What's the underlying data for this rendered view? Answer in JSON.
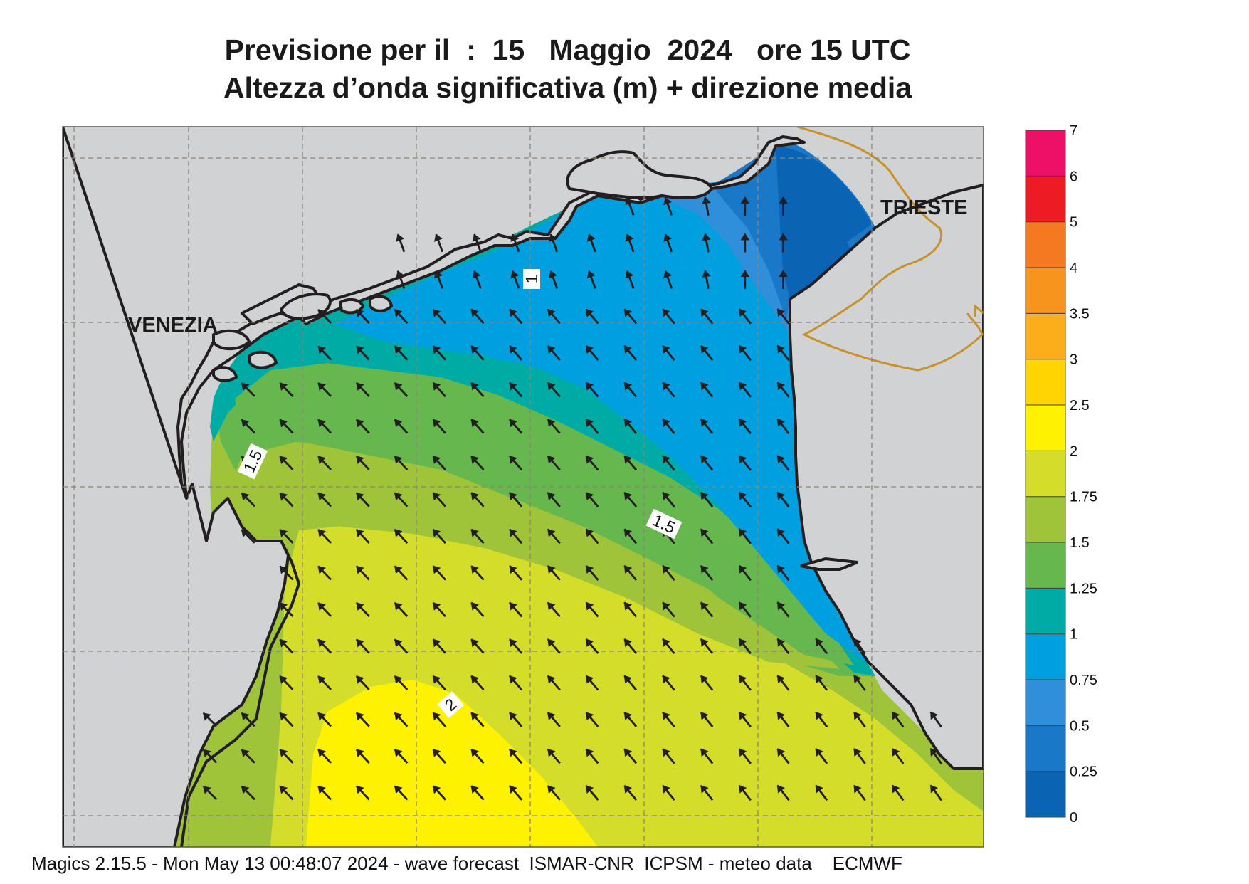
{
  "title_line1": "Previsione per il  :  15   Maggio  2024   ore 15 UTC",
  "title_line2": "Altezza d’onda significativa (m) + direzione media",
  "cities": [
    {
      "name": "VENEZIA"
    },
    {
      "name": "TRIESTE"
    }
  ],
  "contour_labels": [
    "1",
    "1.5",
    "1.5",
    "2"
  ],
  "colorbar": {
    "ticks": [
      "0",
      "0.25",
      "0.5",
      "0.75",
      "1",
      "1.25",
      "1.5",
      "1.75",
      "2",
      "2.5",
      "3",
      "3.5",
      "4",
      "5",
      "6",
      "7"
    ],
    "colors": [
      "#0b63b4",
      "#1a78c8",
      "#2f8fda",
      "#00a0e0",
      "#00aaa5",
      "#66b74e",
      "#9fc43a",
      "#d4dd2a",
      "#fff200",
      "#ffd400",
      "#fbae1a",
      "#f7941d",
      "#f47920",
      "#ed1c24",
      "#ee1066"
    ]
  },
  "colors": {
    "land": "#d1d2d4",
    "coast": "#231f20",
    "border": "#c8912a",
    "grid": "#8c8478",
    "arrow": "#231f20"
  },
  "footer": "Magics 2.15.5 - Mon May 13 00:48:07 2024 - wave forecast  ISMAR-CNR  ICPSM - meteo data    ECMWF"
}
